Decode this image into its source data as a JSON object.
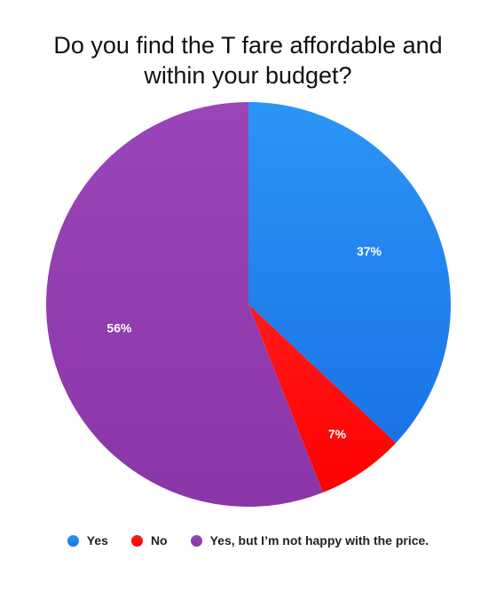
{
  "chart_data": {
    "type": "pie",
    "title_lines": [
      "Do you find the T fare affordable and",
      "within your budget?"
    ],
    "slices": [
      {
        "name": "Yes",
        "value": 37,
        "label": "37%",
        "color": "#1a73e8",
        "color_light": "#2b95f5"
      },
      {
        "name": "No",
        "value": 7,
        "label": "7%",
        "color": "#ff0000",
        "color_light": "#ff1a1a"
      },
      {
        "name": "Yes, but I’m not happy with the price.",
        "value": 56,
        "label": "56%",
        "color": "#8a35a8",
        "color_light": "#9a45b8"
      }
    ],
    "legend_position": "bottom"
  }
}
